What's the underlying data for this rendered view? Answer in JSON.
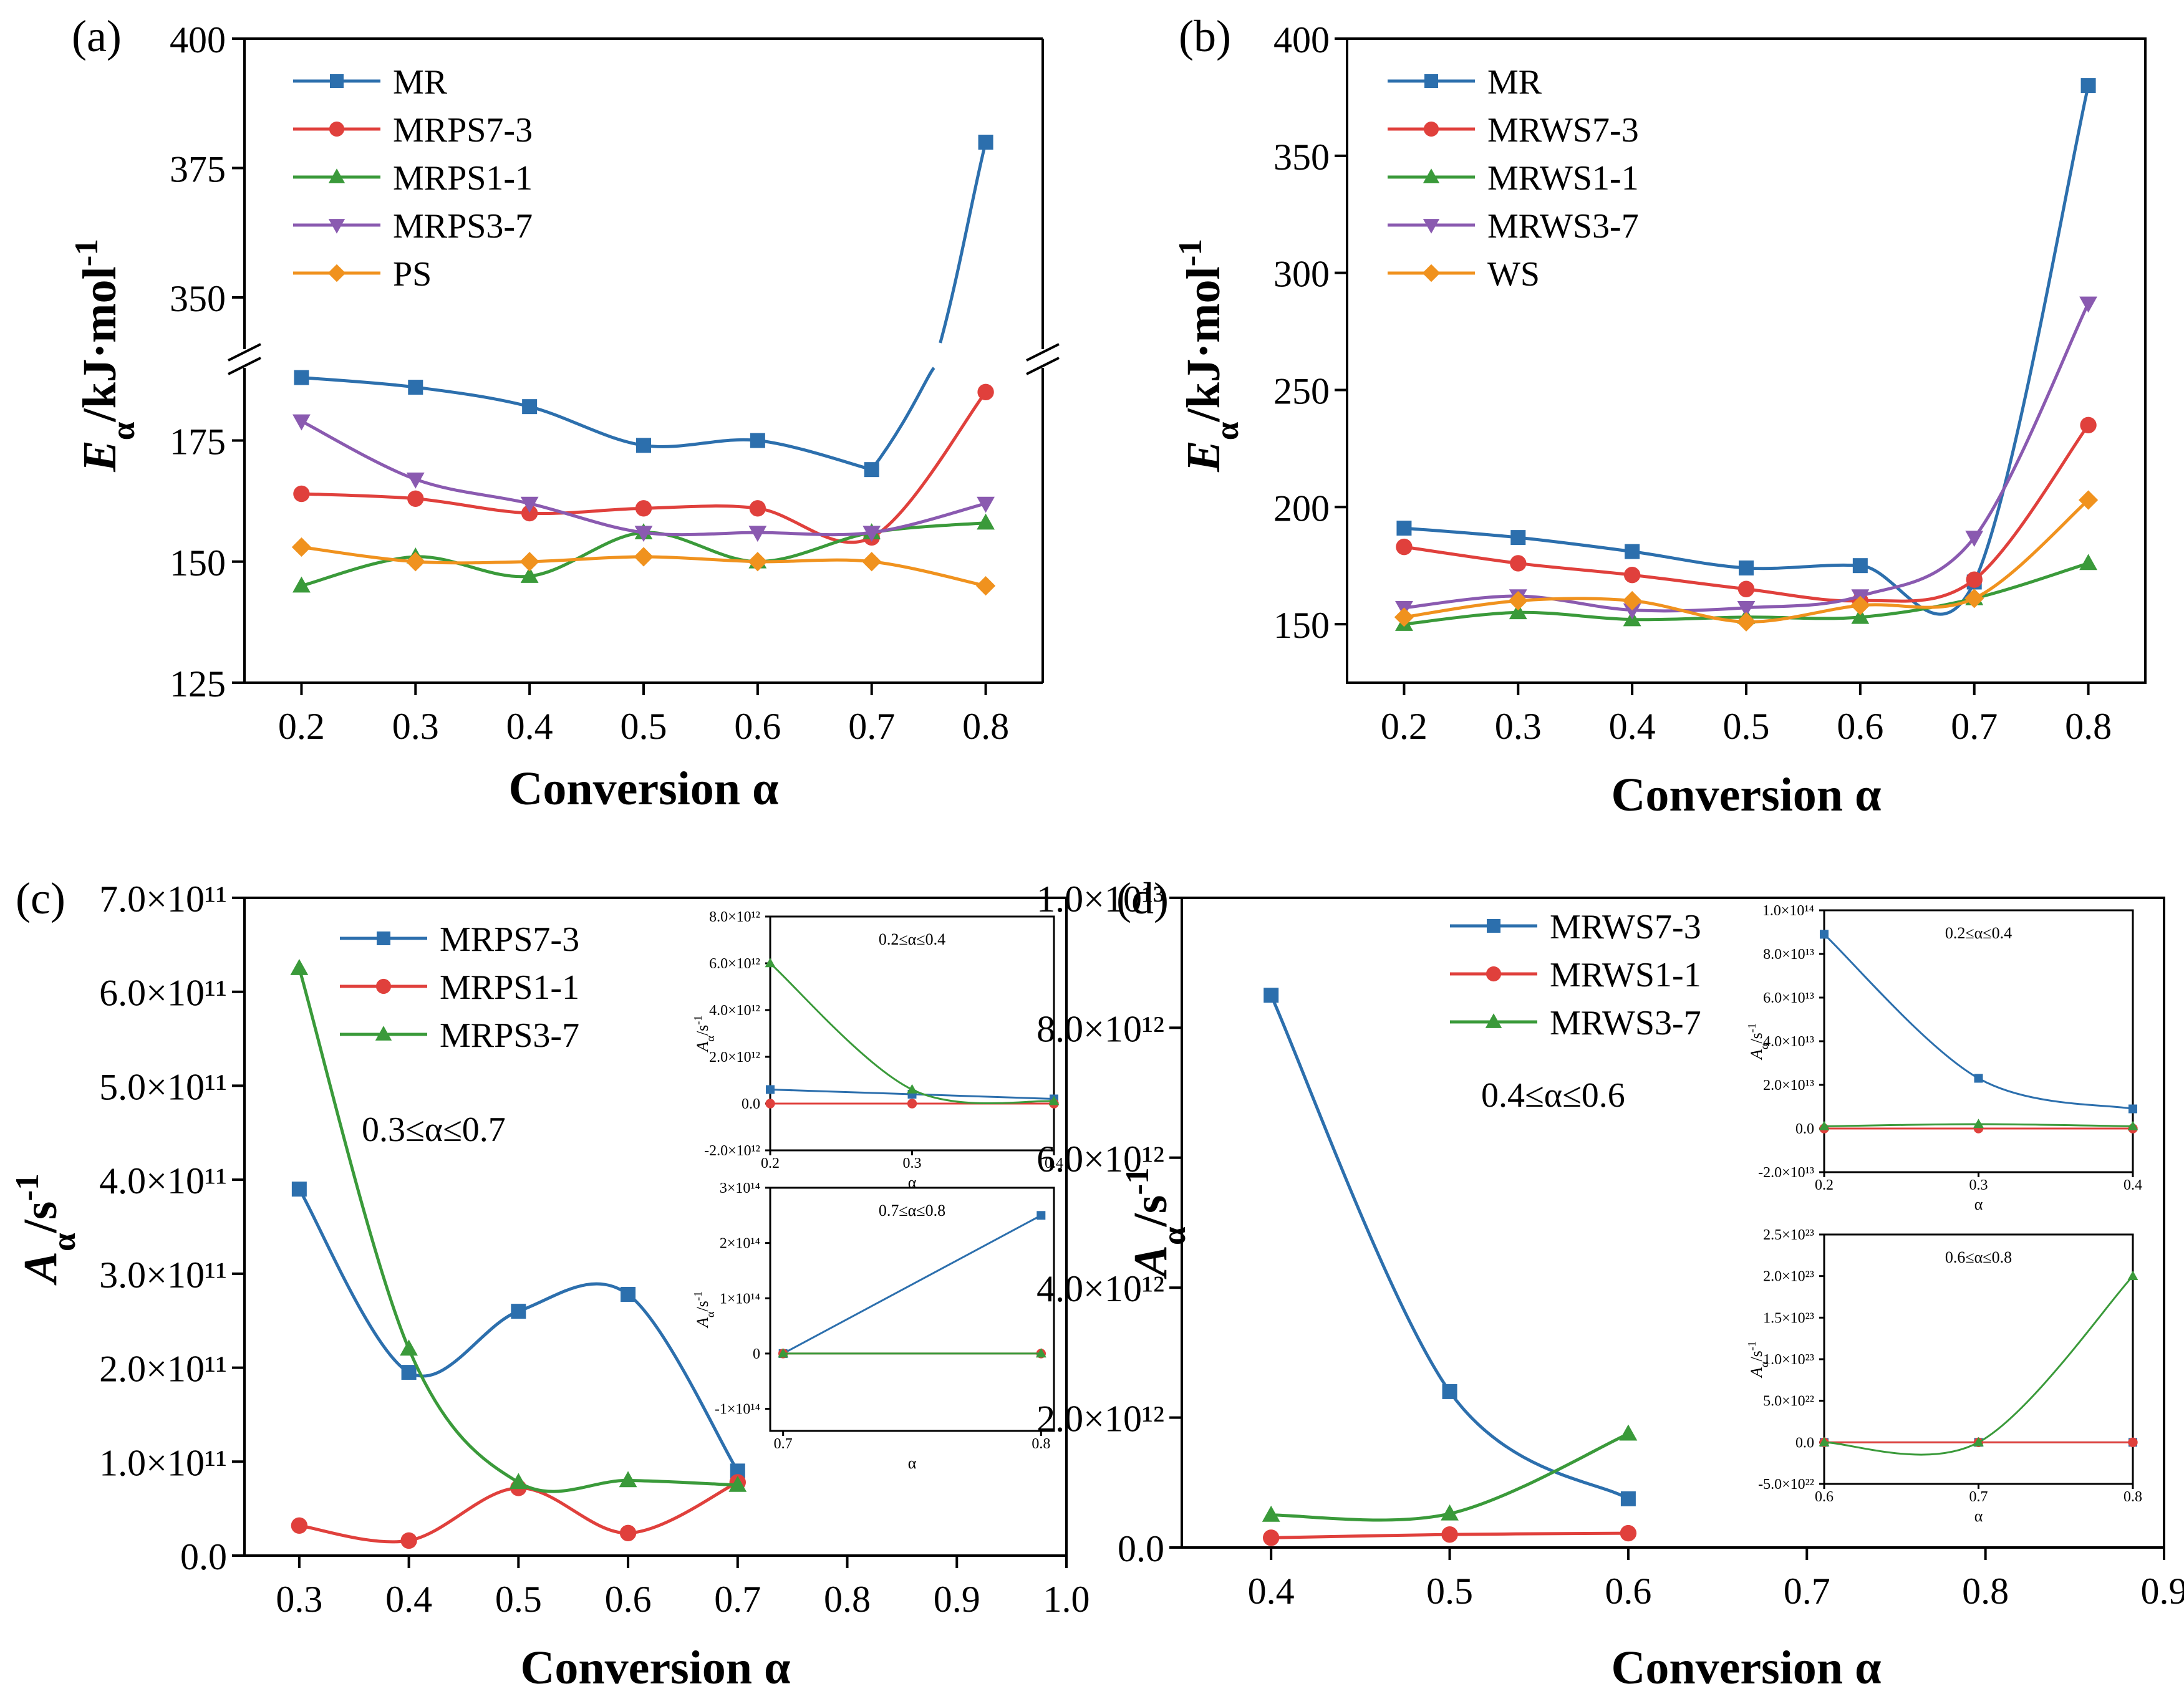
{
  "figure_panels": [
    "(a)",
    "(b)",
    "(c)",
    "(d)"
  ],
  "colors": {
    "blue": "#2c6fad",
    "red": "#e0403c",
    "green": "#3a9a3a",
    "purple": "#8a5ab0",
    "orange": "#f0921e"
  },
  "chart_data": [
    {
      "panel": "(a)",
      "type": "line",
      "xlabel": "Conversion α",
      "ylabel": "Eα/kJ·mol-1",
      "x": [
        0.2,
        0.3,
        0.4,
        0.5,
        0.6,
        0.7,
        0.8
      ],
      "xticks": [
        "0.2",
        "0.3",
        "0.4",
        "0.5",
        "0.6",
        "0.7",
        "0.8"
      ],
      "broken_axis": true,
      "ylim_lower": [
        125,
        190
      ],
      "ylim_upper": [
        340,
        400
      ],
      "yticks": [
        "125",
        "150",
        "175",
        "350",
        "375",
        "400"
      ],
      "series": [
        {
          "name": "MR",
          "values": [
            188,
            186,
            182,
            174,
            175,
            169,
            380
          ]
        },
        {
          "name": "MRPS7-3",
          "values": [
            164,
            163,
            160,
            161,
            161,
            155,
            185
          ]
        },
        {
          "name": "MRPS1-1",
          "values": [
            145,
            151,
            147,
            156,
            150,
            156,
            158
          ]
        },
        {
          "name": "MRPS3-7",
          "values": [
            179,
            167,
            162,
            156,
            156,
            156,
            162
          ]
        },
        {
          "name": "PS",
          "values": [
            153,
            150,
            150,
            151,
            150,
            150,
            145
          ]
        }
      ]
    },
    {
      "panel": "(b)",
      "type": "line",
      "xlabel": "Conversion α",
      "ylabel": "Eα/kJ·mol-1",
      "x": [
        0.2,
        0.3,
        0.4,
        0.5,
        0.6,
        0.7,
        0.8
      ],
      "xticks": [
        "0.2",
        "0.3",
        "0.4",
        "0.5",
        "0.6",
        "0.7",
        "0.8"
      ],
      "ylim": [
        125,
        400
      ],
      "yticks": [
        "150",
        "200",
        "250",
        "300",
        "350",
        "400"
      ],
      "series": [
        {
          "name": "MR",
          "values": [
            191,
            187,
            181,
            174,
            175,
            168,
            380
          ]
        },
        {
          "name": "MRWS7-3",
          "values": [
            183,
            176,
            171,
            165,
            160,
            169,
            235
          ]
        },
        {
          "name": "MRWS1-1",
          "values": [
            150,
            155,
            152,
            153,
            153,
            161,
            176
          ]
        },
        {
          "name": "MRWS3-7",
          "values": [
            157,
            162,
            156,
            157,
            162,
            187,
            287
          ]
        },
        {
          "name": "WS",
          "values": [
            153,
            160,
            160,
            151,
            158,
            161,
            203
          ]
        }
      ]
    },
    {
      "panel": "(c)",
      "type": "line",
      "xlabel": "Conversion α",
      "ylabel": "Aα/s-1",
      "annotation": "0.3≤α≤0.7",
      "x": [
        0.3,
        0.4,
        0.5,
        0.6,
        0.7
      ],
      "xlim": [
        0.25,
        1.0
      ],
      "xticks": [
        "0.3",
        "0.4",
        "0.5",
        "0.6",
        "0.7",
        "0.8",
        "0.9",
        "1.0"
      ],
      "ylim": [
        0,
        700000000000.0
      ],
      "yticks": [
        "0.0",
        "1.0×10¹¹",
        "2.0×10¹¹",
        "3.0×10¹¹",
        "4.0×10¹¹",
        "5.0×10¹¹",
        "6.0×10¹¹",
        "7.0×10¹¹"
      ],
      "series": [
        {
          "name": "MRPS7-3",
          "values": [
            390000000000.0,
            195000000000.0,
            260000000000.0,
            278000000000.0,
            90000000000.0
          ]
        },
        {
          "name": "MRPS1-1",
          "values": [
            32000000000.0,
            16000000000.0,
            72000000000.0,
            24000000000.0,
            78000000000.0
          ]
        },
        {
          "name": "MRPS3-7",
          "values": [
            625000000000.0,
            220000000000.0,
            78000000000.0,
            80000000000.0,
            75000000000.0
          ]
        }
      ],
      "insets": [
        {
          "annotation": "0.2≤α≤0.4",
          "xlabel": "α",
          "ylabel": "Aα/s-1",
          "x": [
            0.2,
            0.3,
            0.4
          ],
          "ylim": [
            -2000000000000.0,
            8000000000000.0
          ],
          "xticks": [
            "0.2",
            "0.3",
            "0.4"
          ],
          "yticks": [
            "-2.0×10¹²",
            "0.0",
            "2.0×10¹²",
            "4.0×10¹²",
            "6.0×10¹²",
            "8.0×10¹²"
          ],
          "series": [
            {
              "name": "MRPS7-3",
              "values": [
                600000000000.0,
                400000000000.0,
                200000000000.0
              ]
            },
            {
              "name": "MRPS1-1",
              "values": [
                0.0,
                0.0,
                0.0
              ]
            },
            {
              "name": "MRPS3-7",
              "values": [
                6000000000000.0,
                600000000000.0,
                100000000000.0
              ]
            }
          ]
        },
        {
          "annotation": "0.7≤α≤0.8",
          "xlabel": "α",
          "ylabel": "Aα/s-1",
          "x": [
            0.7,
            0.8
          ],
          "ylim": [
            -140000000000000.0,
            300000000000000.0
          ],
          "xticks": [
            "0.7",
            "0.8"
          ],
          "yticks": [
            "-1×10¹⁴",
            "0",
            "1×10¹⁴",
            "2×10¹⁴",
            "3×10¹⁴"
          ],
          "series": [
            {
              "name": "MRPS7-3",
              "values": [
                0.0,
                250000000000000.0
              ]
            },
            {
              "name": "MRPS1-1",
              "values": [
                0.0,
                0.0
              ]
            },
            {
              "name": "MRPS3-7",
              "values": [
                0.0,
                0.0
              ]
            }
          ]
        }
      ]
    },
    {
      "panel": "(d)",
      "type": "line",
      "xlabel": "Conversion α",
      "ylabel": "Aα/s-1",
      "annotation": "0.4≤α≤0.6",
      "x": [
        0.4,
        0.5,
        0.6
      ],
      "xlim": [
        0.35,
        0.9
      ],
      "xticks": [
        "0.4",
        "0.5",
        "0.6",
        "0.7",
        "0.8",
        "0.9"
      ],
      "ylim": [
        0,
        10000000000000.0
      ],
      "yticks": [
        "0.0",
        "2.0×10¹²",
        "4.0×10¹²",
        "6.0×10¹²",
        "8.0×10¹²",
        "1.0×10¹³"
      ],
      "series": [
        {
          "name": "MRWS7-3",
          "values": [
            8500000000000.0,
            2400000000000.0,
            750000000000.0
          ]
        },
        {
          "name": "MRWS1-1",
          "values": [
            150000000000.0,
            200000000000.0,
            220000000000.0
          ]
        },
        {
          "name": "MRWS3-7",
          "values": [
            500000000000.0,
            520000000000.0,
            1750000000000.0
          ]
        }
      ],
      "insets": [
        {
          "annotation": "0.2≤α≤0.4",
          "xlabel": "α",
          "ylabel": "Aα/s-1",
          "x": [
            0.2,
            0.3,
            0.4
          ],
          "ylim": [
            -20000000000000.0,
            100000000000000.0
          ],
          "xticks": [
            "0.2",
            "0.3",
            "0.4"
          ],
          "yticks": [
            "-2.0×10¹³",
            "0.0",
            "2.0×10¹³",
            "4.0×10¹³",
            "6.0×10¹³",
            "8.0×10¹³",
            "1.0×10¹⁴"
          ],
          "series": [
            {
              "name": "MRWS7-3",
              "values": [
                89000000000000.0,
                23000000000000.0,
                9000000000000.0
              ]
            },
            {
              "name": "MRWS1-1",
              "values": [
                0.0,
                0.0,
                0.0
              ]
            },
            {
              "name": "MRWS3-7",
              "values": [
                1000000000000.0,
                2000000000000.0,
                1000000000000.0
              ]
            }
          ]
        },
        {
          "annotation": "0.6≤α≤0.8",
          "xlabel": "α",
          "ylabel": "Aα/s-1",
          "x": [
            0.6,
            0.7,
            0.8
          ],
          "ylim": [
            -5e+22,
            2.5e+23
          ],
          "xticks": [
            "0.6",
            "0.7",
            "0.8"
          ],
          "yticks": [
            "-5.0×10²²",
            "0.0",
            "5.0×10²²",
            "1.0×10²³",
            "1.5×10²³",
            "2.0×10²³",
            "2.5×10²³"
          ],
          "series": [
            {
              "name": "MRWS7-3",
              "values": [
                0.0,
                0.0,
                0.0
              ]
            },
            {
              "name": "MRWS1-1",
              "values": [
                0.0,
                0.0,
                0.0
              ]
            },
            {
              "name": "MRWS3-7",
              "values": [
                0.0,
                0.0,
                2e+23
              ]
            }
          ]
        }
      ]
    }
  ]
}
